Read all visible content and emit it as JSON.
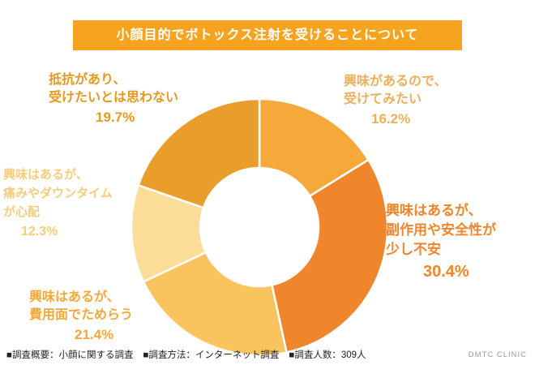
{
  "title": "小顔目的でボトックス注射を受けることについて",
  "colors": {
    "banner": "#F6A41F",
    "background": "#FFFFFF"
  },
  "chart_data": {
    "type": "pie",
    "variant": "donut",
    "title": "小顔目的でボトックス注射を受けることについて",
    "start_angle": "top",
    "direction": "clockwise",
    "inner_radius_ratio": 0.46,
    "segments": [
      {
        "label": "興味があるので、受けてみたい",
        "value": 16.2,
        "color": "#F5A93B"
      },
      {
        "label": "興味はあるが、副作用や安全性が少し不安",
        "value": 30.4,
        "color": "#F0862C"
      },
      {
        "label": "興味はあるが、費用面でためらう",
        "value": 21.4,
        "color": "#F9C45D"
      },
      {
        "label": "興味はあるが、痛みやダウンタイムが心配",
        "value": 12.3,
        "color": "#FBDD98"
      },
      {
        "label": "抵抗があり、受けたいとは思わない",
        "value": 19.7,
        "color": "#E99D2B"
      }
    ]
  },
  "labels": {
    "try": {
      "lines": [
        "興味があるので、",
        "受けてみたい"
      ],
      "pct": "16.2%",
      "color": "#ECAF5C"
    },
    "safety": {
      "lines": [
        "興味はあるが、",
        "副作用や安全性が",
        "少し不安"
      ],
      "pct": "30.4%",
      "color": "#F0862C"
    },
    "cost": {
      "lines": [
        "興味はあるが、",
        "費用面でためらう"
      ],
      "pct": "21.4%",
      "color": "#F3A83A"
    },
    "pain": {
      "lines": [
        "興味はあるが、",
        "痛みやダウンタイム",
        "が心配"
      ],
      "pct": "12.3%",
      "color": "#F6CD7E"
    },
    "resist": {
      "lines": [
        "抵抗があり、",
        "受けたいとは思わない"
      ],
      "pct": "19.7%",
      "color": "#E6991B"
    }
  },
  "footer": {
    "items": [
      "■調査概要：小顔に関する調査",
      "■調査方法：インターネット調査",
      "■調査人数：309人"
    ],
    "brand": "DMTC CLINIC"
  }
}
